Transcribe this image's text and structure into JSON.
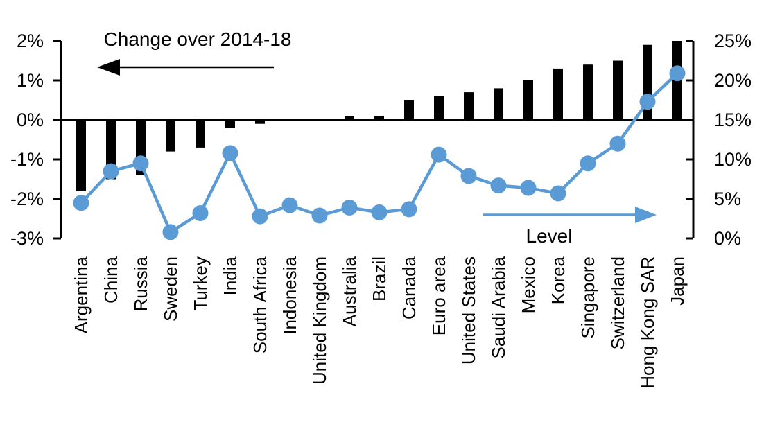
{
  "chart_data": {
    "type": "bar",
    "subtype": "dual-axis bar + line",
    "categories": [
      "Argentina",
      "China",
      "Russia",
      "Sweden",
      "Turkey",
      "India",
      "South Africa",
      "Indonesia",
      "United Kingdom",
      "Australia",
      "Brazil",
      "Canada",
      "Euro area",
      "United States",
      "Saudi Arabia",
      "Mexico",
      "Korea",
      "Singapore",
      "Switzerland",
      "Hong Kong SAR",
      "Japan"
    ],
    "series": [
      {
        "name": "Change over 2014-18",
        "type": "bar",
        "axis": "left",
        "color": "#000000",
        "values": [
          -1.8,
          -1.5,
          -1.4,
          -0.8,
          -0.7,
          -0.2,
          -0.1,
          0,
          0,
          0.1,
          0.1,
          0.5,
          0.6,
          0.7,
          0.8,
          1.0,
          1.3,
          1.4,
          1.5,
          1.9,
          2.0
        ]
      },
      {
        "name": "Level",
        "type": "line",
        "axis": "right",
        "color": "#5B9BD5",
        "values": [
          4.5,
          8.5,
          9.5,
          0.8,
          3.2,
          10.8,
          2.8,
          4.2,
          2.9,
          3.9,
          3.3,
          3.7,
          10.6,
          7.9,
          6.7,
          6.4,
          5.7,
          9.5,
          12.0,
          17.3,
          20.9
        ]
      }
    ],
    "left_axis": {
      "min": -3,
      "max": 2,
      "tick_values": [
        2,
        1,
        0,
        -1,
        -2,
        -3
      ],
      "tick_labels": [
        "2%",
        "1%",
        "0%",
        "-1%",
        "-2%",
        "-3%"
      ]
    },
    "right_axis": {
      "min": 0,
      "max": 25,
      "tick_values": [
        25,
        20,
        15,
        10,
        5,
        0
      ],
      "tick_labels": [
        "25%",
        "20%",
        "15%",
        "10%",
        "5%",
        "0%"
      ]
    },
    "annotations": {
      "left_series_title": "Change over 2014-18",
      "right_series_label": "Level"
    },
    "colors": {
      "bar": "#000000",
      "line": "#5B9BD5",
      "background": "#ffffff"
    },
    "layout": {
      "grid": false,
      "zero_baseline": true,
      "x_labels_rotated_90": true
    }
  }
}
